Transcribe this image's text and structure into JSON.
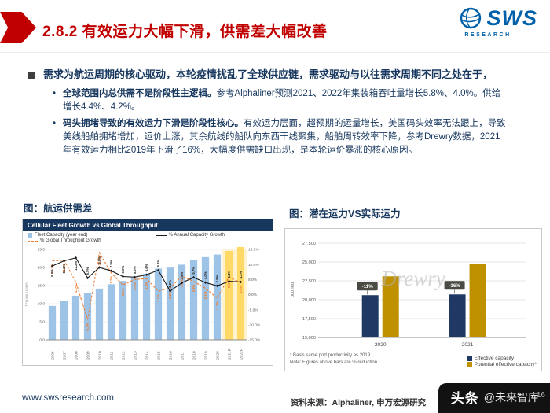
{
  "header": {
    "title": "2.8.2 有效运力大幅下滑，供需差大幅改善",
    "logo": {
      "brand": "SWS",
      "sub": "RESEARCH"
    }
  },
  "body": {
    "bullet": "需求为航运周期的核心驱动，本轮疫情扰乱了全球供应链，需求驱动与以往需求周期不同之处在于，",
    "sub_bullets": [
      {
        "bold": "全球范围内总供需不是阶段性主逻辑。",
        "rest": "参考Alphaliner预测2021、2022年集装箱吞吐量增长5.8%、4.0%。供给增长4.4%、4.2%。"
      },
      {
        "bold": "码头拥堵导致的有效运力下滑是阶段性核心。",
        "rest": "有效运力层面，超预期的运量增长，美国码头效率无法跟上，导致美线船舶拥堵增加，运价上涨，其余航线的船队向东西干线聚集，船舶周转效率下降，参考Drewry数据，2021年有效运力相比2019年下滑了16%，大幅度供需缺口出现，是本轮运价暴涨的核心原因。"
      }
    ],
    "left_chart_caption": "图：航运供需差",
    "right_chart_caption": "图：潜在运力VS实际运力"
  },
  "footer": {
    "website": "www.swsresearch.com",
    "source": "资料来源：Alphaliner, 申万宏源研究",
    "page_number": "16",
    "watermark_bold": "头条",
    "watermark_rest": "@未来智库"
  },
  "chart_data": [
    {
      "type": "bar",
      "subtype": "combo-bar-line",
      "title": "Cellular Fleet Growth vs Global Throughput",
      "ylabel_left": "TEU MILLIONS",
      "ylim_left": [
        0,
        25
      ],
      "yticks_left": [
        "0.0",
        "5.0",
        "10.0",
        "15.0",
        "20.0",
        "25.0"
      ],
      "ylim_right": [
        -15,
        15
      ],
      "yticks_right": [
        "-15.0%",
        "-10.0%",
        "-5.0%",
        "0.0%",
        "5.0%",
        "10.0%",
        "15.0%"
      ],
      "categories": [
        "2006",
        "2007",
        "2008",
        "2009",
        "2010",
        "2011",
        "2012",
        "2013",
        "2014",
        "2015",
        "2016",
        "2017",
        "2018",
        "2019",
        "2020",
        "2021F",
        "2022F"
      ],
      "bar_series": {
        "name": "Fleet Capacity (year end)",
        "color": "#9DC3E6",
        "values": [
          9.4,
          10.7,
          12.2,
          12.9,
          14.2,
          15.4,
          16.3,
          17.2,
          18.3,
          19.7,
          20.0,
          20.8,
          22.0,
          22.9,
          23.6,
          24.6,
          25.7
        ]
      },
      "line_series": [
        {
          "name": "% Global Throughput Growth",
          "color": "#ED7D31",
          "dashed": true,
          "values": [
            11.2,
            11.4,
            4.2,
            -8.3,
            13.9,
            7.2,
            3.2,
            5.0,
            5.3,
            1.1,
            2.2,
            6.1,
            4.4,
            2.1,
            -1.2,
            5.8,
            4.0
          ]
        },
        {
          "name": "% Annual Capacity Growth",
          "color": "#1a1a1a",
          "dashed": false,
          "values": [
            9.5,
            11.2,
            12.2,
            5.5,
            9.0,
            7.9,
            6.0,
            5.8,
            6.6,
            8.1,
            1.2,
            3.9,
            5.7,
            4.0,
            2.9,
            4.4,
            4.2
          ]
        }
      ],
      "band_color": "#FFF2CC",
      "forecast_color": "#FFD966",
      "grid": true,
      "legend_position": "top"
    },
    {
      "type": "bar",
      "categories": [
        "2020",
        "2021"
      ],
      "series": [
        {
          "name": "Effective capacity",
          "color": "#1F3864",
          "values": [
            20600,
            20700
          ]
        },
        {
          "name": "Potential effective capacity*",
          "color": "#BF9000",
          "values": [
            23100,
            24700
          ]
        }
      ],
      "bar_labels": [
        "-11%",
        "-16%"
      ],
      "ylabel": "'000 Teu",
      "ylim": [
        15000,
        27500
      ],
      "yticks": [
        "15,000",
        "17,500",
        "20,000",
        "22,500",
        "25,000",
        "27,500"
      ],
      "notes": [
        "* Basis same port productivity as 2019",
        "Note: Figures above bars are % reduction."
      ],
      "watermark": "Drewry",
      "grid": true,
      "legend_position": "bottom-right"
    }
  ]
}
